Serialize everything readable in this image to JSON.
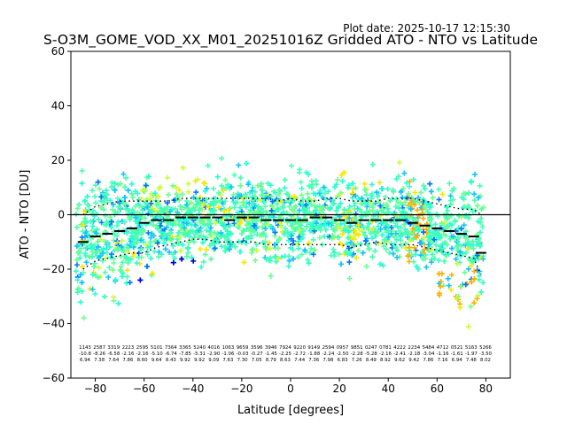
{
  "plot_date": "Plot date: 2025-10-17 12:15:30",
  "chart_data": {
    "type": "scatter",
    "title": "S-O3M_GOME_VOD_XX_M01_20251016Z Gridded ATO - NTO vs Latitude",
    "xlabel": "Latitude [degrees]",
    "ylabel": "ATO - NTO [DU]",
    "xlim": [
      -90,
      90
    ],
    "ylim": [
      -60,
      60
    ],
    "xticks": [
      -80,
      -60,
      -40,
      -20,
      0,
      20,
      40,
      60,
      80
    ],
    "yticks": [
      -60,
      -40,
      -20,
      0,
      20,
      40,
      60
    ],
    "zero_line": 0,
    "bin_counts": [
      "1143",
      "2587",
      "3319",
      "2223",
      "2595",
      "5101",
      "7364",
      "3365",
      "5240",
      "4016",
      "1063",
      "9659",
      "3596",
      "3946",
      "7924",
      "9220",
      "9149",
      "2594",
      "0957",
      "9851",
      "0247",
      "0781",
      "4222",
      "2234",
      "5484",
      "4712",
      "0521",
      "5163",
      "5266"
    ],
    "bin_mean_row": [
      "-10.8",
      "-8.26",
      "-6.58",
      "-2.16",
      "-2.16",
      "-5.10",
      "-6.74",
      "-7.85",
      "-5.31",
      "-2.90",
      "-1.06",
      "-0.03",
      "-0.27",
      "-1.45",
      "-2.25",
      "-2.72",
      "-1.88",
      "-2.24",
      "-2.50",
      "-2.28",
      "-5.28",
      "-2.16",
      "-2.41",
      "-2.18",
      "-3.04",
      "-1.16",
      "-1.61",
      "-1.97",
      "-3.50"
    ],
    "bin_std_row": [
      "6.94",
      "7.38",
      "7.64",
      "7.86",
      "8.60",
      "9.64",
      "8.43",
      "9.92",
      "9.92",
      "9.09",
      "7.63",
      "7.30",
      "7.05",
      "8.79",
      "8.63",
      "7.44",
      "7.36",
      "7.98",
      "6.83",
      "7.26",
      "8.49",
      "8.92",
      "9.62",
      "9.42",
      "7.86",
      "7.16",
      "6.94",
      "7.48",
      "8.02"
    ],
    "mean": {
      "lat": [
        -85,
        -80,
        -75,
        -70,
        -65,
        -60,
        -55,
        -50,
        -45,
        -40,
        -35,
        -30,
        -25,
        -20,
        -15,
        -10,
        -5,
        0,
        5,
        10,
        15,
        20,
        25,
        30,
        35,
        40,
        45,
        50,
        55,
        60,
        65,
        70,
        75,
        78
      ],
      "values": [
        -10,
        -8,
        -7,
        -6,
        -5,
        -3,
        -2,
        -2,
        -1,
        -1,
        -1,
        -1,
        -2,
        -1,
        -1,
        -2,
        -2,
        -2,
        -2,
        -1,
        -1,
        -2,
        -3,
        -2,
        -2,
        -2,
        -2,
        -3,
        -4,
        -5,
        -6,
        -7,
        -8,
        -14
      ]
    },
    "std_upper": {
      "lat": [
        -85,
        -80,
        -75,
        -70,
        -65,
        -60,
        -55,
        -50,
        -45,
        -40,
        -35,
        -30,
        -25,
        -20,
        -15,
        -10,
        -5,
        0,
        5,
        10,
        15,
        20,
        25,
        30,
        35,
        40,
        45,
        50,
        55,
        60,
        65,
        70,
        75,
        78
      ],
      "values": [
        0,
        3,
        4,
        5,
        5,
        5,
        5,
        5,
        6,
        6,
        6,
        6,
        6,
        6,
        6,
        6,
        5,
        6,
        5,
        5,
        6,
        6,
        5,
        5,
        5,
        6,
        6,
        6,
        5,
        4,
        3,
        2,
        2,
        0
      ]
    },
    "std_lower": {
      "lat": [
        -85,
        -80,
        -75,
        -70,
        -65,
        -60,
        -55,
        -50,
        -45,
        -40,
        -35,
        -30,
        -25,
        -20,
        -15,
        -10,
        -5,
        0,
        5,
        10,
        15,
        20,
        25,
        30,
        35,
        40,
        45,
        50,
        55,
        60,
        65,
        70,
        75,
        78
      ],
      "values": [
        -20,
        -17,
        -16,
        -15,
        -14,
        -14,
        -12,
        -11,
        -10,
        -9,
        -9,
        -10,
        -10,
        -10,
        -10,
        -11,
        -11,
        -11,
        -11,
        -11,
        -11,
        -11,
        -12,
        -11,
        -10,
        -11,
        -11,
        -11,
        -12,
        -13,
        -14,
        -15,
        -16,
        -22
      ]
    },
    "scatter_colors": [
      "#4dffb0",
      "#2bffd0",
      "#70ff8c",
      "#c8ff3a",
      "#ffe400",
      "#ffb000",
      "#17c2ff",
      "#0077ff",
      "#0000e0"
    ]
  }
}
